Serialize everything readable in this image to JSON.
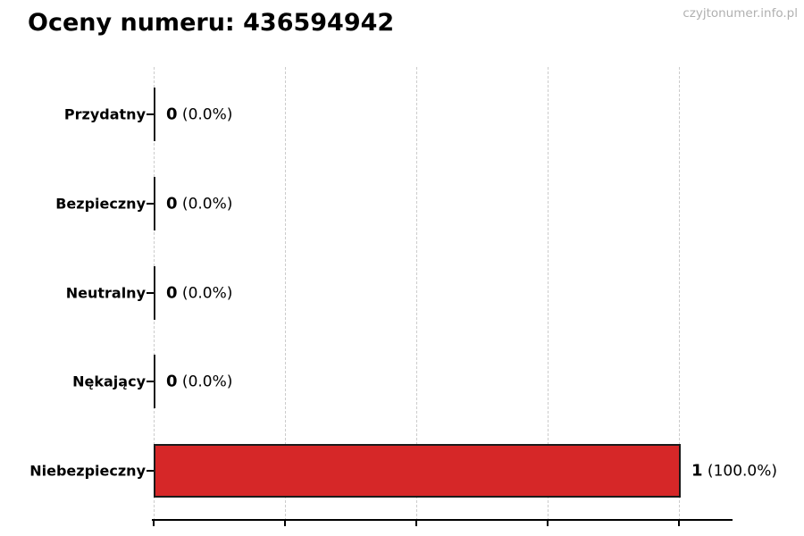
{
  "page": {
    "title": "Oceny numeru: 436594942",
    "watermark": "czyjtonumer.info.pl"
  },
  "chart_data": {
    "type": "bar",
    "orientation": "horizontal",
    "title": "Oceny numeru: 436594942",
    "categories": [
      "Przydatny",
      "Bezpieczny",
      "Neutralny",
      "Nękający",
      "Niebezpieczny"
    ],
    "values": [
      0,
      0,
      0,
      0,
      1
    ],
    "counts": [
      "0",
      "0",
      "0",
      "0",
      "1"
    ],
    "percents": [
      "(0.0%)",
      "(0.0%)",
      "(0.0%)",
      "(0.0%)",
      "(100.0%)"
    ],
    "xlim": [
      0,
      1.1
    ],
    "xticks": [
      0,
      0.25,
      0.5,
      0.75,
      1.0
    ],
    "xtick_labels_visible": false,
    "grid": true,
    "grid_style": "dashed",
    "legend": null
  },
  "colors": {
    "bar_fill": "#d62728",
    "bar_edge": "#1a1a1a",
    "grid": "#cccccc",
    "axis": "#000000",
    "watermark": "#b0b0b0",
    "text": "#000000"
  }
}
